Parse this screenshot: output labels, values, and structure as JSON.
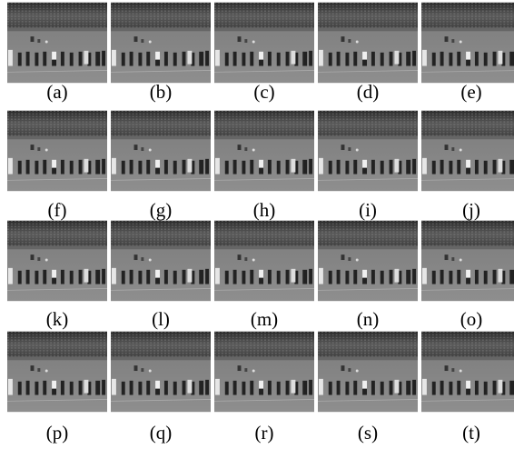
{
  "labels": [
    "(a)",
    "(b)",
    "(c)",
    "(d)",
    "(e)",
    "(f)",
    "(g)",
    "(h)",
    "(i)",
    "(j)",
    "(k)",
    "(l)",
    "(m)",
    "(n)",
    "(o)",
    "(p)",
    "(q)",
    "(r)",
    "(s)",
    "(t)"
  ]
}
